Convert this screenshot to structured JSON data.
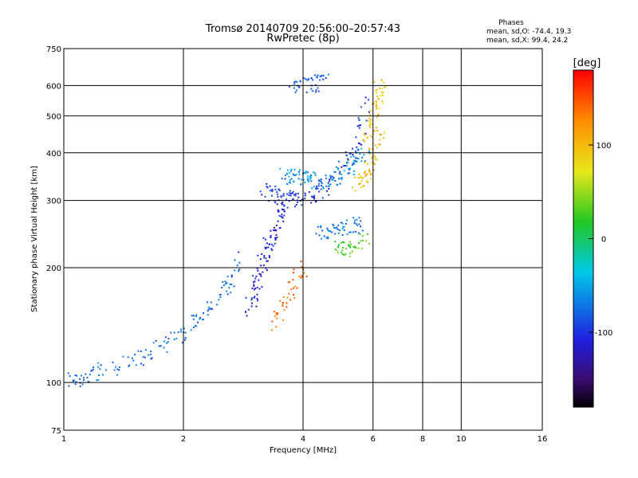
{
  "chart_data": {
    "type": "scatter",
    "title": "Tromsø 20140709 20:56:00–20:57:43",
    "subtitle": "RwPretec (8p)",
    "xlabel": "Frequency [MHz]",
    "ylabel": "Stationary phase Virtual Height [km]",
    "x_scale": "log",
    "y_scale": "log",
    "xlim": [
      1,
      16
    ],
    "ylim": [
      75,
      750
    ],
    "x_ticks": [
      1,
      2,
      4,
      6,
      8,
      10,
      16
    ],
    "y_ticks": [
      75,
      100,
      200,
      300,
      400,
      500,
      600,
      750
    ],
    "grid": true,
    "stats": {
      "header": "Phases",
      "line_o": "mean, sd,O: -74.4, 19.3",
      "line_x": "mean, sd,X:  99.4, 24.2"
    },
    "colorbar": {
      "label": "[deg]",
      "range": [
        -180,
        180
      ],
      "ticks": [
        100,
        0,
        -100
      ],
      "scale": "rainbow (black → violet → blue → cyan → green → yellow → orange → red)"
    },
    "traces": [
      {
        "x": [
          1.0,
          1.1,
          1.2,
          1.4,
          1.6,
          1.8,
          2.0,
          2.2,
          2.4,
          2.6,
          2.8
        ],
        "y": [
          100,
          103,
          106,
          112,
          118,
          126,
          134,
          146,
          160,
          180,
          210
        ],
        "phase": -75
      },
      {
        "x": [
          2.9,
          3.0,
          3.1,
          3.2,
          3.3,
          3.4,
          3.5,
          3.6
        ],
        "y": [
          150,
          170,
          190,
          210,
          230,
          250,
          270,
          290
        ],
        "phase": -110
      },
      {
        "x": [
          3.2,
          3.4,
          3.6,
          3.8,
          4.0,
          4.3,
          4.6,
          5.0,
          5.3,
          5.6,
          5.8
        ],
        "y": [
          320,
          310,
          305,
          302,
          305,
          315,
          330,
          355,
          390,
          450,
          560
        ],
        "phase": -100
      },
      {
        "x": [
          3.5,
          3.7,
          3.9,
          4.1,
          4.4,
          4.8,
          5.2,
          5.5,
          5.8
        ],
        "y": [
          350,
          348,
          345,
          340,
          338,
          345,
          360,
          380,
          420
        ],
        "phase": -60
      },
      {
        "x": [
          3.4,
          3.6,
          3.8,
          4.0
        ],
        "y": [
          140,
          160,
          180,
          200
        ],
        "phase": 140
      },
      {
        "x": [
          5.5,
          5.7,
          5.9,
          6.1,
          6.2
        ],
        "y": [
          330,
          345,
          365,
          400,
          450
        ],
        "phase": 100
      },
      {
        "x": [
          5.7,
          5.9,
          6.1,
          6.2,
          6.3
        ],
        "y": [
          420,
          460,
          520,
          580,
          640
        ],
        "phase": 95
      },
      {
        "x": [
          3.7,
          4.0,
          4.3,
          4.6
        ],
        "y": [
          605,
          600,
          605,
          620
        ],
        "phase": -80
      },
      {
        "x": [
          4.8,
          5.1,
          5.4,
          5.7
        ],
        "y": [
          220,
          225,
          230,
          235
        ],
        "phase": 30
      },
      {
        "x": [
          4.4,
          4.7,
          5.0,
          5.3,
          5.6
        ],
        "y": [
          250,
          248,
          252,
          255,
          260
        ],
        "phase": -70
      }
    ]
  }
}
